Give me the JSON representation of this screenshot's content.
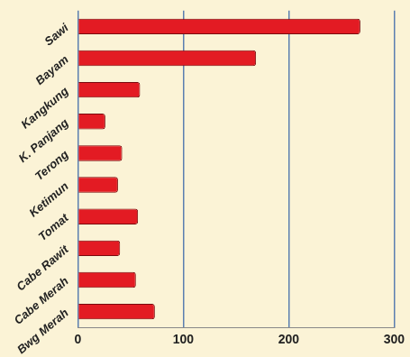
{
  "chart_data": {
    "type": "bar",
    "orientation": "horizontal",
    "categories": [
      "Sawi",
      "Bayam",
      "Kangkung",
      "K. Panjang",
      "Terong",
      "Ketimun",
      "Tomat",
      "Cabe Rawit",
      "Cabe Merah",
      "Bwg Merah"
    ],
    "values": [
      268,
      169,
      59,
      26,
      42,
      38,
      57,
      40,
      55,
      73
    ],
    "color": "#e31b23",
    "xlim": [
      0,
      300
    ],
    "xticks": [
      0,
      100,
      200,
      300
    ],
    "grid": true
  }
}
